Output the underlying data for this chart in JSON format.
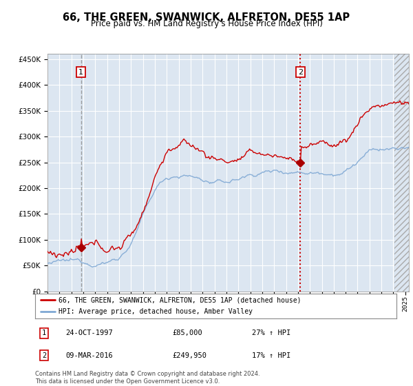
{
  "title": "66, THE GREEN, SWANWICK, ALFRETON, DE55 1AP",
  "subtitle": "Price paid vs. HM Land Registry's House Price Index (HPI)",
  "sale1_date": "24-OCT-1997",
  "sale1_price": 85000,
  "sale1_hpi_pct": "27% ↑ HPI",
  "sale1_year": 1997.8,
  "sale2_date": "09-MAR-2016",
  "sale2_price": 249950,
  "sale2_hpi_pct": "17% ↑ HPI",
  "sale2_year": 2016.2,
  "legend_label1": "66, THE GREEN, SWANWICK, ALFRETON, DE55 1AP (detached house)",
  "legend_label2": "HPI: Average price, detached house, Amber Valley",
  "footer": "Contains HM Land Registry data © Crown copyright and database right 2024.\nThis data is licensed under the Open Government Licence v3.0.",
  "line1_color": "#cc0000",
  "line2_color": "#7fa8d4",
  "bg_color": "#dce6f1",
  "ylim": [
    0,
    460000
  ],
  "xlim_start": 1995.0,
  "xlim_end": 2025.3,
  "vline1_color": "#888888",
  "vline2_color": "#cc0000",
  "marker_color": "#aa0000"
}
